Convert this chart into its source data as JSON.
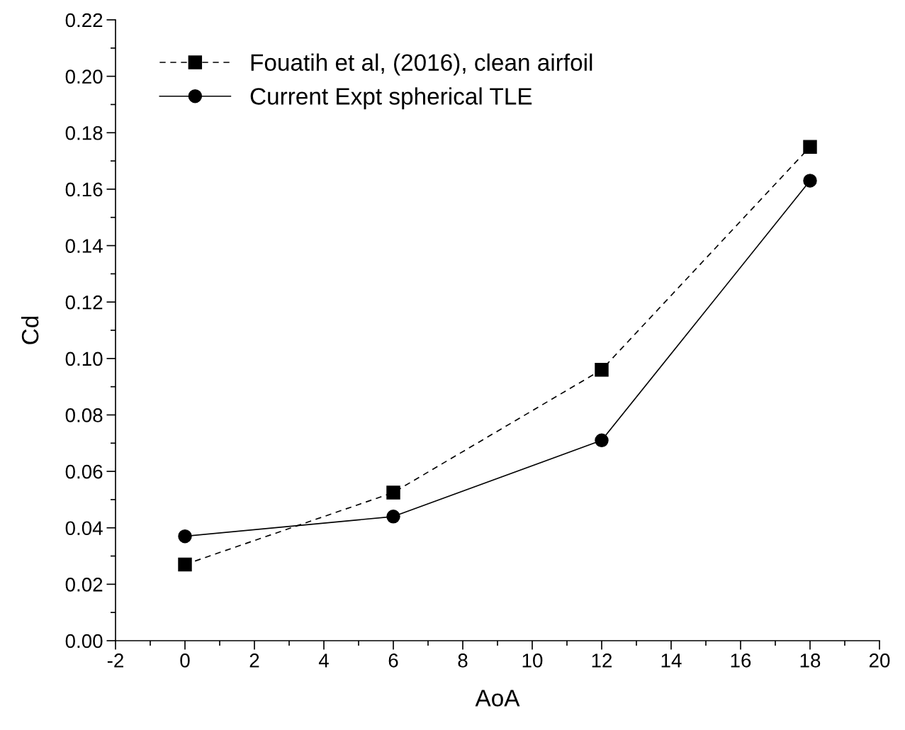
{
  "chart_data": {
    "type": "line",
    "xlabel": "AoA",
    "ylabel": "Cd",
    "x": [
      0,
      6,
      12,
      18
    ],
    "series": [
      {
        "name": "Fouatih et al, (2016), clean airfoil",
        "color": "#000000",
        "values": [
          0.027,
          0.0525,
          0.096,
          0.175
        ],
        "marker": "square",
        "line_style": "dashed"
      },
      {
        "name": "Current Expt spherical TLE",
        "color": "#000000",
        "values": [
          0.037,
          0.044,
          0.071,
          0.163
        ],
        "marker": "circle",
        "line_style": "solid"
      }
    ],
    "xlim": [
      -2,
      20
    ],
    "xticks": [
      -2,
      0,
      2,
      4,
      6,
      8,
      10,
      12,
      14,
      16,
      18,
      20
    ],
    "ylim": [
      0,
      0.22
    ],
    "yticks": [
      {
        "value": 0,
        "label": "0.00"
      },
      {
        "value": 0.02,
        "label": "0.02"
      },
      {
        "value": 0.04,
        "label": "0.04"
      },
      {
        "value": 0.06,
        "label": "0.06"
      },
      {
        "value": 0.08,
        "label": "0.08"
      },
      {
        "value": 0.1,
        "label": "0.10"
      },
      {
        "value": 0.12,
        "label": "0.12"
      },
      {
        "value": 0.14,
        "label": "0.14"
      },
      {
        "value": 0.16,
        "label": "0.16"
      },
      {
        "value": 0.18,
        "label": "0.18"
      },
      {
        "value": 0.2,
        "label": "0.20"
      },
      {
        "value": 0.22,
        "label": "0.22"
      }
    ],
    "grid": false,
    "legend": "top left"
  }
}
